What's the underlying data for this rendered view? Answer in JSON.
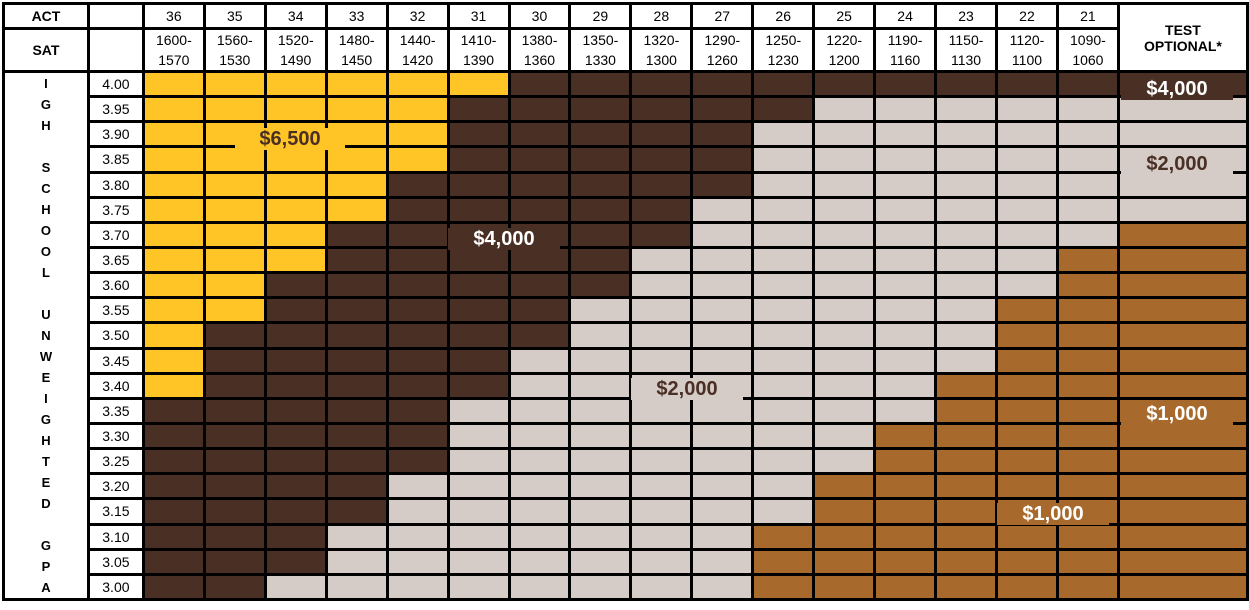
{
  "header": {
    "act_label": "ACT",
    "sat_label": "SAT",
    "test_optional_label": "TEST OPTIONAL*",
    "act_scores": [
      "36",
      "35",
      "34",
      "33",
      "32",
      "31",
      "30",
      "29",
      "28",
      "27",
      "26",
      "25",
      "24",
      "23",
      "22",
      "21"
    ],
    "sat_ranges": [
      "1600-1570",
      "1560-1530",
      "1520-1490",
      "1480-1450",
      "1440-1420",
      "1410-1390",
      "1380-1360",
      "1350-1330",
      "1320-1300",
      "1290-1260",
      "1250-1230",
      "1220-1200",
      "1190-1160",
      "1150-1130",
      "1120-1100",
      "1090-1060"
    ]
  },
  "side_label": "IGH SCHOOL UNWEIGHTED GPA",
  "colors": {
    "6500": "#FFC425",
    "4000": "#4A2F25",
    "2000": "#D5CCC7",
    "1000": "#A8692C"
  },
  "rows": [
    {
      "gpa": "4.00",
      "awards": [
        6500,
        6500,
        6500,
        6500,
        6500,
        6500,
        4000,
        4000,
        4000,
        4000,
        4000,
        4000,
        4000,
        4000,
        4000,
        4000
      ],
      "test_optional": 4000
    },
    {
      "gpa": "3.95",
      "awards": [
        6500,
        6500,
        6500,
        6500,
        6500,
        4000,
        4000,
        4000,
        4000,
        4000,
        4000,
        2000,
        2000,
        2000,
        2000,
        2000
      ],
      "test_optional": 2000
    },
    {
      "gpa": "3.90",
      "awards": [
        6500,
        6500,
        6500,
        6500,
        6500,
        4000,
        4000,
        4000,
        4000,
        4000,
        2000,
        2000,
        2000,
        2000,
        2000,
        2000
      ],
      "test_optional": 2000
    },
    {
      "gpa": "3.85",
      "awards": [
        6500,
        6500,
        6500,
        6500,
        6500,
        4000,
        4000,
        4000,
        4000,
        4000,
        2000,
        2000,
        2000,
        2000,
        2000,
        2000
      ],
      "test_optional": 2000
    },
    {
      "gpa": "3.80",
      "awards": [
        6500,
        6500,
        6500,
        6500,
        4000,
        4000,
        4000,
        4000,
        4000,
        4000,
        2000,
        2000,
        2000,
        2000,
        2000,
        2000
      ],
      "test_optional": 2000
    },
    {
      "gpa": "3.75",
      "awards": [
        6500,
        6500,
        6500,
        6500,
        4000,
        4000,
        4000,
        4000,
        4000,
        2000,
        2000,
        2000,
        2000,
        2000,
        2000,
        2000
      ],
      "test_optional": 2000
    },
    {
      "gpa": "3.70",
      "awards": [
        6500,
        6500,
        6500,
        4000,
        4000,
        4000,
        4000,
        4000,
        4000,
        2000,
        2000,
        2000,
        2000,
        2000,
        2000,
        2000
      ],
      "test_optional": 1000
    },
    {
      "gpa": "3.65",
      "awards": [
        6500,
        6500,
        6500,
        4000,
        4000,
        4000,
        4000,
        4000,
        2000,
        2000,
        2000,
        2000,
        2000,
        2000,
        2000,
        1000
      ],
      "test_optional": 1000
    },
    {
      "gpa": "3.60",
      "awards": [
        6500,
        6500,
        4000,
        4000,
        4000,
        4000,
        4000,
        4000,
        2000,
        2000,
        2000,
        2000,
        2000,
        2000,
        2000,
        1000
      ],
      "test_optional": 1000
    },
    {
      "gpa": "3.55",
      "awards": [
        6500,
        6500,
        4000,
        4000,
        4000,
        4000,
        4000,
        2000,
        2000,
        2000,
        2000,
        2000,
        2000,
        2000,
        1000,
        1000
      ],
      "test_optional": 1000
    },
    {
      "gpa": "3.50",
      "awards": [
        6500,
        4000,
        4000,
        4000,
        4000,
        4000,
        4000,
        2000,
        2000,
        2000,
        2000,
        2000,
        2000,
        2000,
        1000,
        1000
      ],
      "test_optional": 1000
    },
    {
      "gpa": "3.45",
      "awards": [
        6500,
        4000,
        4000,
        4000,
        4000,
        4000,
        2000,
        2000,
        2000,
        2000,
        2000,
        2000,
        2000,
        2000,
        1000,
        1000
      ],
      "test_optional": 1000
    },
    {
      "gpa": "3.40",
      "awards": [
        6500,
        4000,
        4000,
        4000,
        4000,
        4000,
        2000,
        2000,
        2000,
        2000,
        2000,
        2000,
        2000,
        1000,
        1000,
        1000
      ],
      "test_optional": 1000
    },
    {
      "gpa": "3.35",
      "awards": [
        4000,
        4000,
        4000,
        4000,
        4000,
        2000,
        2000,
        2000,
        2000,
        2000,
        2000,
        2000,
        2000,
        1000,
        1000,
        1000
      ],
      "test_optional": 1000
    },
    {
      "gpa": "3.30",
      "awards": [
        4000,
        4000,
        4000,
        4000,
        4000,
        2000,
        2000,
        2000,
        2000,
        2000,
        2000,
        2000,
        1000,
        1000,
        1000,
        1000
      ],
      "test_optional": 1000
    },
    {
      "gpa": "3.25",
      "awards": [
        4000,
        4000,
        4000,
        4000,
        4000,
        2000,
        2000,
        2000,
        2000,
        2000,
        2000,
        2000,
        1000,
        1000,
        1000,
        1000
      ],
      "test_optional": 1000
    },
    {
      "gpa": "3.20",
      "awards": [
        4000,
        4000,
        4000,
        4000,
        2000,
        2000,
        2000,
        2000,
        2000,
        2000,
        2000,
        1000,
        1000,
        1000,
        1000,
        1000
      ],
      "test_optional": 1000
    },
    {
      "gpa": "3.15",
      "awards": [
        4000,
        4000,
        4000,
        4000,
        2000,
        2000,
        2000,
        2000,
        2000,
        2000,
        2000,
        1000,
        1000,
        1000,
        1000,
        1000
      ],
      "test_optional": 1000
    },
    {
      "gpa": "3.10",
      "awards": [
        4000,
        4000,
        4000,
        2000,
        2000,
        2000,
        2000,
        2000,
        2000,
        2000,
        1000,
        1000,
        1000,
        1000,
        1000,
        1000
      ],
      "test_optional": 1000
    },
    {
      "gpa": "3.05",
      "awards": [
        4000,
        4000,
        4000,
        2000,
        2000,
        2000,
        2000,
        2000,
        2000,
        2000,
        1000,
        1000,
        1000,
        1000,
        1000,
        1000
      ],
      "test_optional": 1000
    },
    {
      "gpa": "3.00",
      "awards": [
        4000,
        4000,
        2000,
        2000,
        2000,
        2000,
        2000,
        2000,
        2000,
        2000,
        1000,
        1000,
        1000,
        1000,
        1000,
        1000
      ],
      "test_optional": 1000
    }
  ],
  "award_labels": {
    "tier_6500": "$6,500",
    "tier_4000": "$4,000",
    "tier_2000": "$2,000",
    "tier_1000": "$1,000",
    "optional_4000": "$4,000",
    "optional_2000": "$2,000",
    "optional_1000": "$1,000"
  }
}
